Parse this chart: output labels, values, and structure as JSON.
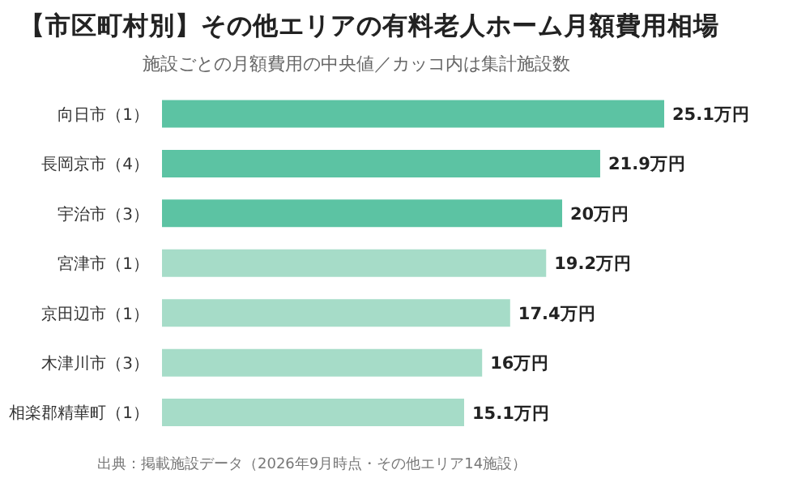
{
  "chart_data": {
    "type": "bar",
    "orientation": "horizontal",
    "title": "【市区町村別】その他エリアの有料老人ホーム月額費用相場",
    "subtitle": "施設ごとの月額費用の中央値／カッコ内は集計施設数",
    "categories": [
      "向日市（1）",
      "長岡京市（4）",
      "宇治市（3）",
      "宮津市（1）",
      "京田辺市（1）",
      "木津川市（3）",
      "相楽郡精華町（1）"
    ],
    "values": [
      25.1,
      21.9,
      20,
      19.2,
      17.4,
      16,
      15.1
    ],
    "value_labels": [
      "25.1万円",
      "21.9万円",
      "20万円",
      "19.2万円",
      "17.4万円",
      "16万円",
      "15.1万円"
    ],
    "colors": [
      "#5cc3a3",
      "#5cc3a3",
      "#5cc3a3",
      "#a6dcc8",
      "#a6dcc8",
      "#a6dcc8",
      "#a6dcc8"
    ],
    "annotations": [
      "出典：掲載施設データ（2026年9月時点・その他エリア14施設）"
    ]
  }
}
